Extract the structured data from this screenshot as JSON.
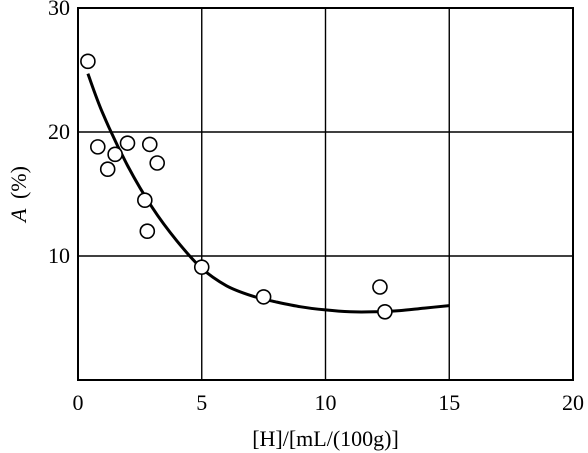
{
  "chart_data": {
    "type": "scatter",
    "title": "",
    "xlabel": "[H]/[mL/(100g)]",
    "ylabel_var": "A",
    "ylabel_unit": "(%)",
    "xlim": [
      0,
      20
    ],
    "ylim": [
      0,
      30
    ],
    "x_ticks": [
      0,
      5,
      10,
      15,
      20
    ],
    "y_ticks": [
      10,
      20,
      30
    ],
    "x_tick_labels": [
      "0",
      "5",
      "10",
      "15",
      "20"
    ],
    "y_tick_labels": [
      "10",
      "20",
      "30"
    ],
    "grid": true,
    "series": [
      {
        "marker": "open-circle",
        "points": [
          {
            "x": 0.4,
            "y": 25.7
          },
          {
            "x": 0.8,
            "y": 18.8
          },
          {
            "x": 1.2,
            "y": 17.0
          },
          {
            "x": 1.5,
            "y": 18.2
          },
          {
            "x": 2.0,
            "y": 19.1
          },
          {
            "x": 2.9,
            "y": 19.0
          },
          {
            "x": 3.2,
            "y": 17.5
          },
          {
            "x": 2.7,
            "y": 14.5
          },
          {
            "x": 2.8,
            "y": 12.0
          },
          {
            "x": 5.0,
            "y": 9.1
          },
          {
            "x": 7.5,
            "y": 6.7
          },
          {
            "x": 12.2,
            "y": 7.5
          },
          {
            "x": 12.4,
            "y": 5.5
          }
        ]
      },
      {
        "marker": "none",
        "line": "smooth",
        "points": [
          {
            "x": 0.4,
            "y": 24.7
          },
          {
            "x": 1.0,
            "y": 21.5
          },
          {
            "x": 2.0,
            "y": 17.3
          },
          {
            "x": 3.0,
            "y": 13.9
          },
          {
            "x": 4.0,
            "y": 11.2
          },
          {
            "x": 5.0,
            "y": 9.0
          },
          {
            "x": 6.0,
            "y": 7.6
          },
          {
            "x": 7.0,
            "y": 6.8
          },
          {
            "x": 8.0,
            "y": 6.3
          },
          {
            "x": 9.0,
            "y": 5.9
          },
          {
            "x": 10.0,
            "y": 5.65
          },
          {
            "x": 11.0,
            "y": 5.5
          },
          {
            "x": 12.0,
            "y": 5.5
          },
          {
            "x": 13.0,
            "y": 5.6
          },
          {
            "x": 14.0,
            "y": 5.8
          },
          {
            "x": 15.0,
            "y": 6.0
          }
        ]
      }
    ]
  }
}
